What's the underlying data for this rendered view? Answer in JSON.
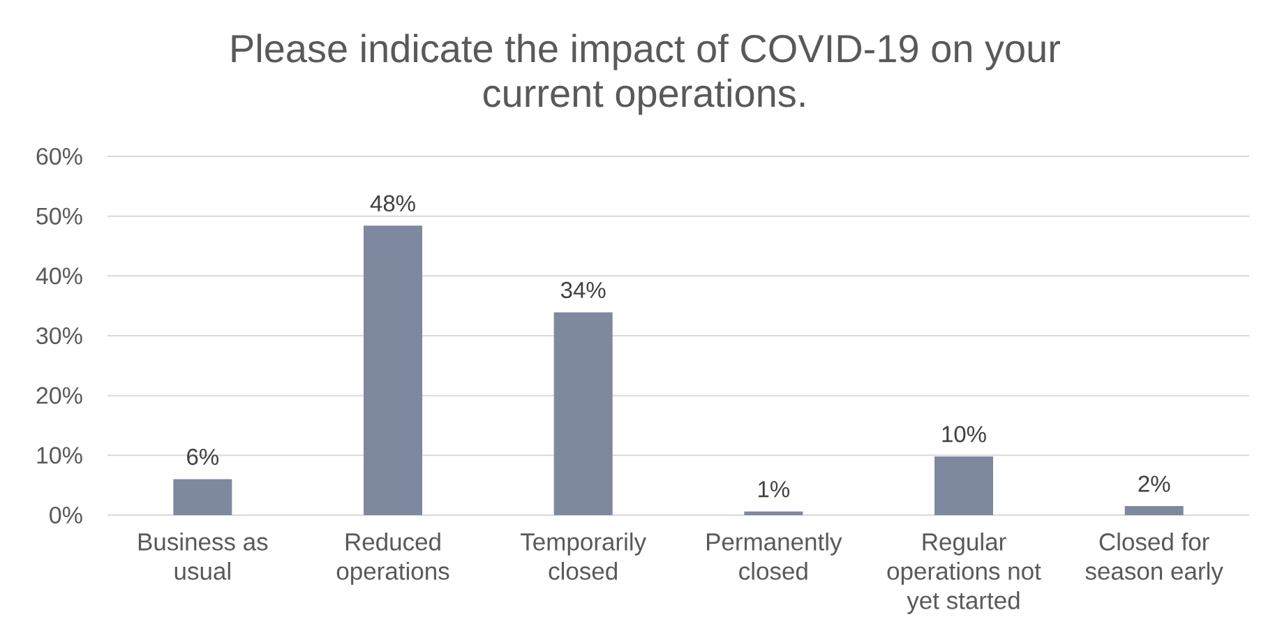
{
  "chart_data": {
    "type": "bar",
    "title": "Please indicate the impact of COVID-19 on your current operations.",
    "categories": [
      "Business as usual",
      "Reduced operations",
      "Temporarily closed",
      "Permanently closed",
      "Regular operations not yet started",
      "Closed for season early"
    ],
    "values": [
      6,
      48.4,
      33.9,
      0.6,
      9.8,
      1.5
    ],
    "value_labels": [
      "6%",
      "48%",
      "34%",
      "1%",
      "10%",
      "2%"
    ],
    "color": "#7e889e",
    "ylim": [
      0,
      60
    ],
    "yticks": [
      {
        "value": 0,
        "label": "0%"
      },
      {
        "value": 10,
        "label": "10%"
      },
      {
        "value": 20,
        "label": "20%"
      },
      {
        "value": 30,
        "label": "30%"
      },
      {
        "value": 40,
        "label": "40%"
      },
      {
        "value": 50,
        "label": "50%"
      },
      {
        "value": 60,
        "label": "60%"
      }
    ],
    "grid": "y"
  }
}
